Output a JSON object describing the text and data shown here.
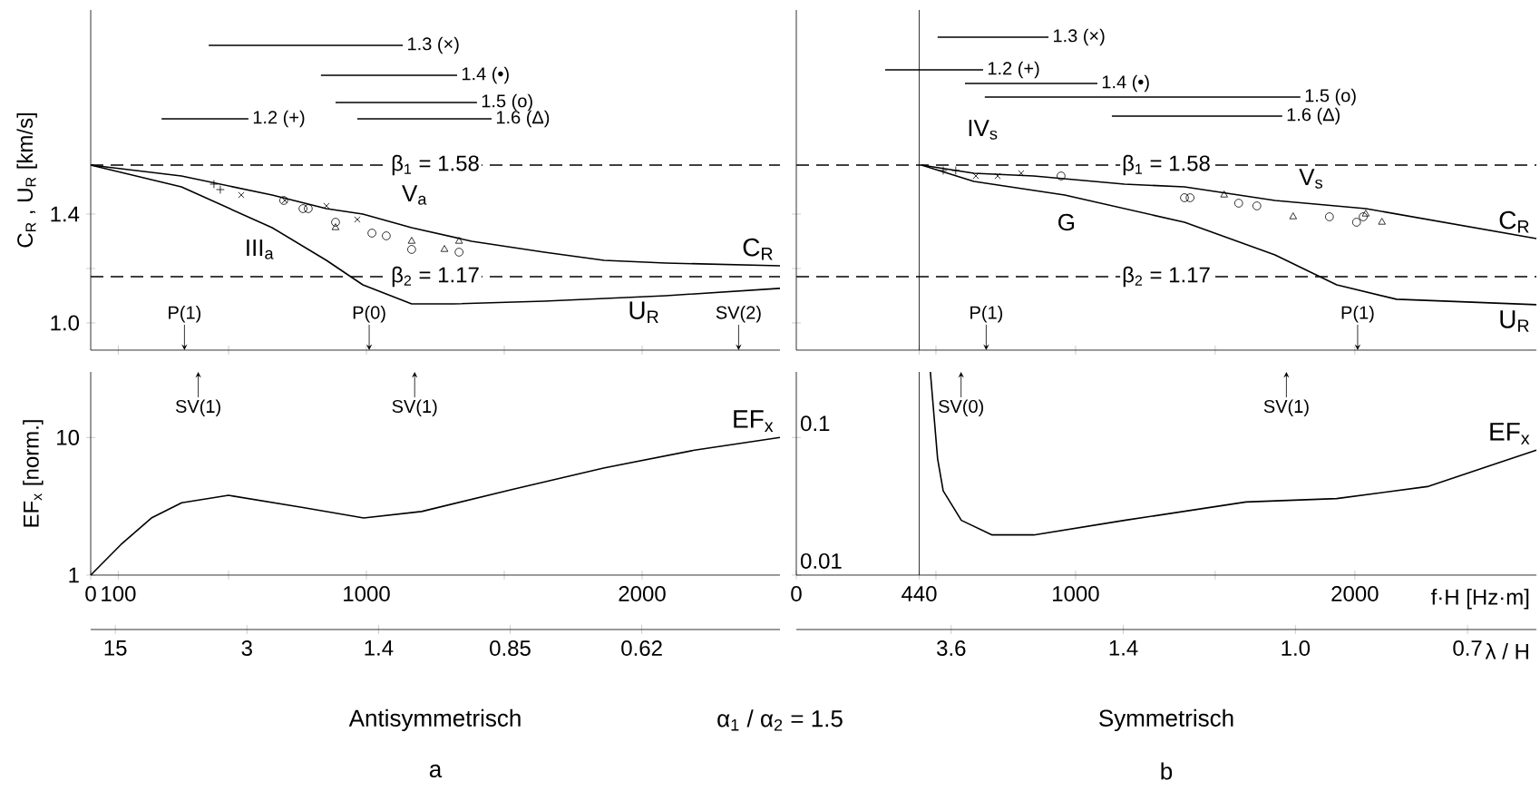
{
  "chart_data": [
    {
      "type": "line",
      "xlim": [
        0,
        2500
      ],
      "ylim": [
        0.9,
        2.15
      ],
      "tick_labels": "y",
      "ylabel": "C$_{R}$ , U$_{R}$  [km/s]",
      "xticks": [
        {
          "value": 100,
          "label": null
        },
        {
          "value": 500,
          "label": null
        },
        {
          "value": 1000,
          "label": null
        },
        {
          "value": 1500,
          "label": null
        },
        {
          "value": 2000,
          "label": null
        }
      ],
      "yticks": [
        {
          "value": 1.0,
          "label": "1.0"
        },
        {
          "value": 1.2,
          "label": null
        },
        1.4
      ],
      "series": [
        {
          "name": "C$_{R}$",
          "color": "#000000",
          "x": [
            0,
            329,
            658,
            855,
            987,
            1164,
            1382,
            1645,
            1862,
            2086,
            2500
          ],
          "values": [
            1.58,
            1.54,
            1.47,
            1.42,
            1.4,
            1.35,
            1.3,
            1.26,
            1.23,
            1.22,
            1.21
          ]
        },
        {
          "name": "U$_{R}$",
          "color": "#000000",
          "x": [
            0,
            329,
            658,
            855,
            987,
            1164,
            1316,
            1645,
            2086,
            2500
          ],
          "values": [
            1.58,
            1.5,
            1.35,
            1.23,
            1.14,
            1.07,
            1.07,
            1.08,
            1.1,
            1.127
          ]
        },
        {
          "type": "scatter",
          "marker": "plus",
          "color": "#000000",
          "x": [
            447,
            470
          ],
          "values": [
            1.51,
            1.49
          ]
        },
        {
          "type": "scatter",
          "marker": "cross",
          "color": "#000000",
          "x": [
            546,
            704,
            855,
            967
          ],
          "values": [
            1.47,
            1.45,
            1.43,
            1.38
          ]
        },
        {
          "type": "scatter",
          "marker": "circle",
          "color": "#000000",
          "x": [
            700,
            770,
            888,
            1020,
            1072
          ],
          "values": [
            1.45,
            1.42,
            1.37,
            1.33,
            1.32
          ]
        },
        {
          "type": "scatter",
          "marker": "circle",
          "color": "#000000",
          "x": [
            789,
            1164,
            1336
          ],
          "values": [
            1.42,
            1.27,
            1.26
          ]
        },
        {
          "type": "scatter",
          "marker": "triangle",
          "color": "#000000",
          "x": [
            888,
            1164,
            1283,
            1336
          ],
          "values": [
            1.35,
            1.3,
            1.27,
            1.3
          ]
        },
        {
          "name": "1.2 (+)",
          "color": "#000000",
          "x": [
            257,
            572
          ],
          "values": [
            1.75,
            1.75
          ]
        },
        {
          "name": "1.3 (×)",
          "color": "#000000",
          "x": [
            428,
            1132
          ],
          "values": [
            2.02,
            2.02
          ]
        },
        {
          "name": "1.4 (•)",
          "color": "#000000",
          "x": [
            835,
            1329
          ],
          "values": [
            1.91,
            1.91
          ]
        },
        {
          "name": "1.5 (o)",
          "color": "#000000",
          "x": [
            888,
            1401
          ],
          "values": [
            1.81,
            1.81
          ]
        },
        {
          "name": "1.6 (Δ)",
          "color": "#000000",
          "x": [
            967,
            1454
          ],
          "values": [
            1.75,
            1.75
          ]
        }
      ],
      "ref_lines": [
        {
          "axis": "y",
          "value": 1.58,
          "label": "β$_{1}$ = 1.58",
          "line_style": "dashed"
        },
        {
          "axis": "y",
          "value": 1.17,
          "label": "β$_{2}$ = 1.17",
          "line_style": "dashed"
        }
      ],
      "annotations": [
        {
          "text": "P(1)",
          "x": 340,
          "y": 0.9
        },
        {
          "text": "P(0)",
          "x": 1010,
          "y": 0.9
        },
        {
          "text": "SV(2)",
          "x": 2350,
          "y": 0.9
        },
        "III$_{a}$",
        "V$_{a}$"
      ]
    },
    {
      "type": "line",
      "xlim": [
        0,
        2650
      ],
      "ylim": [
        0.9,
        2.15
      ],
      "tick_labels": false,
      "xticks": [
        {
          "value": 440,
          "label": null
        },
        {
          "value": 500,
          "label": null
        },
        {
          "value": 1000,
          "label": null
        },
        {
          "value": 1500,
          "label": null
        },
        {
          "value": 2000,
          "label": null
        }
      ],
      "yticks": [
        {
          "value": 1.0,
          "label": null
        },
        {
          "value": 1.2,
          "label": null
        },
        {
          "value": 1.4,
          "label": null
        }
      ],
      "series": [
        {
          "name": "C$_{R}$",
          "color": "#000000",
          "x": [
            448,
            636,
            850,
            1175,
            1390,
            1714,
            2040,
            2650
          ],
          "values": [
            1.58,
            1.55,
            1.54,
            1.51,
            1.5,
            1.45,
            1.42,
            1.31
          ]
        },
        {
          "name": "U$_{R}$",
          "color": "#000000",
          "x": [
            448,
            636,
            961,
            1390,
            1714,
            1935,
            2149,
            2650
          ],
          "values": [
            1.58,
            1.52,
            1.47,
            1.37,
            1.25,
            1.14,
            1.087,
            1.067
          ]
        },
        {
          "type": "scatter",
          "marker": "plus",
          "color": "#000000",
          "x": [
            526,
            571
          ],
          "values": [
            1.56,
            1.56
          ]
        },
        {
          "type": "scatter",
          "marker": "cross",
          "color": "#000000",
          "x": [
            643,
            721,
            805
          ],
          "values": [
            1.54,
            1.54,
            1.55
          ]
        },
        {
          "type": "scatter",
          "marker": "circle",
          "color": "#000000",
          "x": [
            948,
            1390,
            1410
          ],
          "values": [
            1.54,
            1.46,
            1.46
          ]
        },
        {
          "type": "scatter",
          "marker": "circle",
          "color": "#000000",
          "x": [
            1584,
            1649,
            1909,
            2006,
            2030
          ],
          "values": [
            1.44,
            1.43,
            1.39,
            1.37,
            1.39
          ]
        },
        {
          "type": "scatter",
          "marker": "triangle",
          "color": "#000000",
          "x": [
            1532,
            1779,
            2039,
            2097
          ],
          "values": [
            1.47,
            1.39,
            1.4,
            1.37
          ]
        },
        {
          "name": "1.2 (+)",
          "color": "#000000",
          "x": [
            318,
            669
          ],
          "values": [
            1.93,
            1.93
          ]
        },
        {
          "name": "1.3 (×)",
          "color": "#000000",
          "x": [
            506,
            903
          ],
          "values": [
            2.05,
            2.05
          ]
        },
        {
          "name": "1.4 (•)",
          "color": "#000000",
          "x": [
            604,
            1078
          ],
          "values": [
            1.88,
            1.88
          ]
        },
        {
          "name": "1.5 (o)",
          "color": "#000000",
          "x": [
            675,
            1805
          ],
          "values": [
            1.83,
            1.83
          ]
        },
        {
          "name": "1.6 (Δ)",
          "color": "#000000",
          "x": [
            1130,
            1740
          ],
          "values": [
            1.76,
            1.76
          ]
        }
      ],
      "ref_lines": [
        {
          "axis": "y",
          "value": 1.58,
          "label": "β$_{1}$ = 1.58",
          "line_style": "dashed"
        },
        {
          "axis": "y",
          "value": 1.17,
          "label": "β$_{2}$ = 1.17",
          "line_style": "dashed"
        },
        {
          "axis": "x",
          "value": 440,
          "line_style": "solid"
        }
      ],
      "annotations": [
        {
          "text": "P(1)",
          "x": 680,
          "y": 0.9
        },
        {
          "text": "P(1)",
          "x": 2010,
          "y": 0.9
        },
        "IV$_{s}$",
        "V$_{s}$",
        "G"
      ]
    },
    {
      "type": "line",
      "log": true,
      "xlim": [
        0,
        2500
      ],
      "ylim": [
        1,
        30
      ],
      "ylabel": "EF$_{x}$  [norm.]",
      "xticks": [
        0,
        100,
        {
          "value": 500,
          "label": null
        },
        1000,
        {
          "value": 1500,
          "label": null
        },
        2000
      ],
      "yticks": [
        1,
        10
      ],
      "series": [
        {
          "name": "EF$_{x}$",
          "color": "#000000",
          "x": [
            0,
            110,
            220,
            330,
            500,
            770,
            990,
            1200,
            1530,
            1860,
            2190,
            2500
          ],
          "values": [
            1,
            1.67,
            2.6,
            3.36,
            3.8,
            3.1,
            2.6,
            2.9,
            4.2,
            6.0,
            8.1,
            10
          ]
        }
      ],
      "annotations": [
        "Antisymmetrisch",
        "a",
        "α$_{1}$ / α$_{2}$ = 1.5",
        {
          "text": "SV(1)",
          "x": 390,
          "y": 30
        },
        {
          "text": "SV(1)",
          "x": 1175,
          "y": 30
        }
      ]
    },
    {
      "type": "line",
      "log": true,
      "xlim": [
        0,
        2650
      ],
      "ylim": [
        0.01,
        0.3
      ],
      "xlabel": "f·H [Hz·m]",
      "xticks": [
        0,
        440,
        {
          "value": 500,
          "label": null
        },
        1000,
        {
          "value": 1500,
          "label": null
        },
        2000
      ],
      "yticks": [
        0.01,
        0.1
      ],
      "series": [
        {
          "name": "EF$_{x}$",
          "color": "#000000",
          "x": [
            480,
            506,
            526,
            591,
            701,
            851,
            1175,
            1610,
            1935,
            2260,
            2650
          ],
          "values": [
            0.3,
            0.07,
            0.041,
            0.025,
            0.0196,
            0.0196,
            0.025,
            0.034,
            0.036,
            0.044,
            0.081
          ]
        }
      ],
      "ref_lines": [
        {
          "axis": "x",
          "value": 440,
          "line_style": "solid"
        }
      ],
      "annotations": [
        "Symmetrisch",
        "b",
        {
          "text": "SV(0)",
          "x": 590,
          "y": 0.3
        },
        {
          "text": "SV(1)",
          "x": 1755,
          "y": 0.3
        }
      ]
    },
    {
      "type": "other",
      "categories": [
        "15",
        "3",
        "1.4",
        "0.85",
        "0.62"
      ]
    },
    {
      "type": "other",
      "categories": [
        "3.6",
        "1.4",
        "1.0",
        "0.7"
      ],
      "xlabel": "λ / H"
    }
  ]
}
